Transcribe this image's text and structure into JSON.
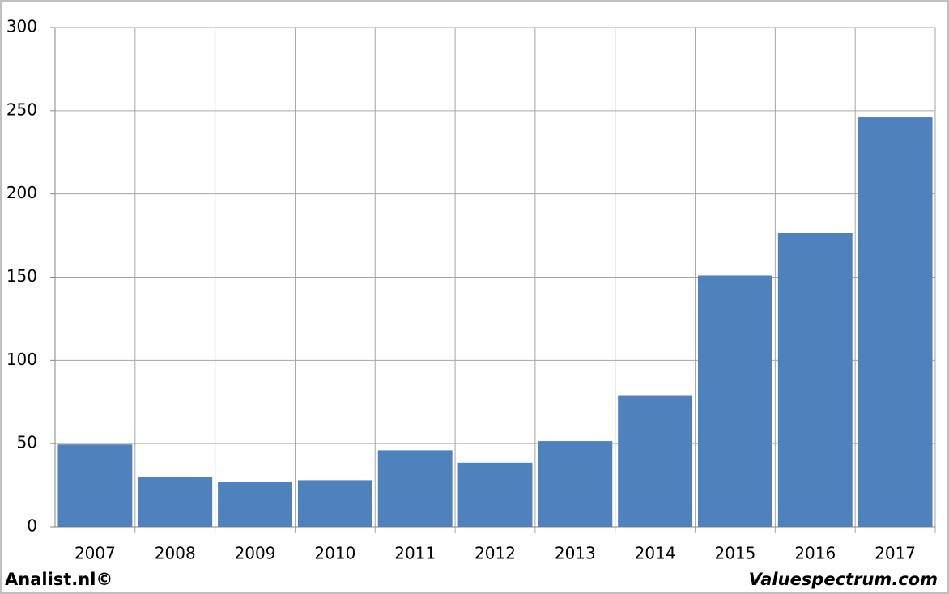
{
  "chart_data": {
    "type": "bar",
    "categories": [
      "2007",
      "2008",
      "2009",
      "2010",
      "2011",
      "2012",
      "2013",
      "2014",
      "2015",
      "2016",
      "2017"
    ],
    "values": [
      49.5,
      30,
      27,
      28,
      46,
      38.5,
      51.5,
      79,
      151,
      176.5,
      246
    ],
    "color": "#4f81bd",
    "ylim": [
      0,
      300
    ],
    "yticks": [
      0,
      50,
      100,
      150,
      200,
      250,
      300
    ],
    "grid": true,
    "source_left": "Analist.nl©",
    "source_right": "Valuespectrum.com"
  }
}
